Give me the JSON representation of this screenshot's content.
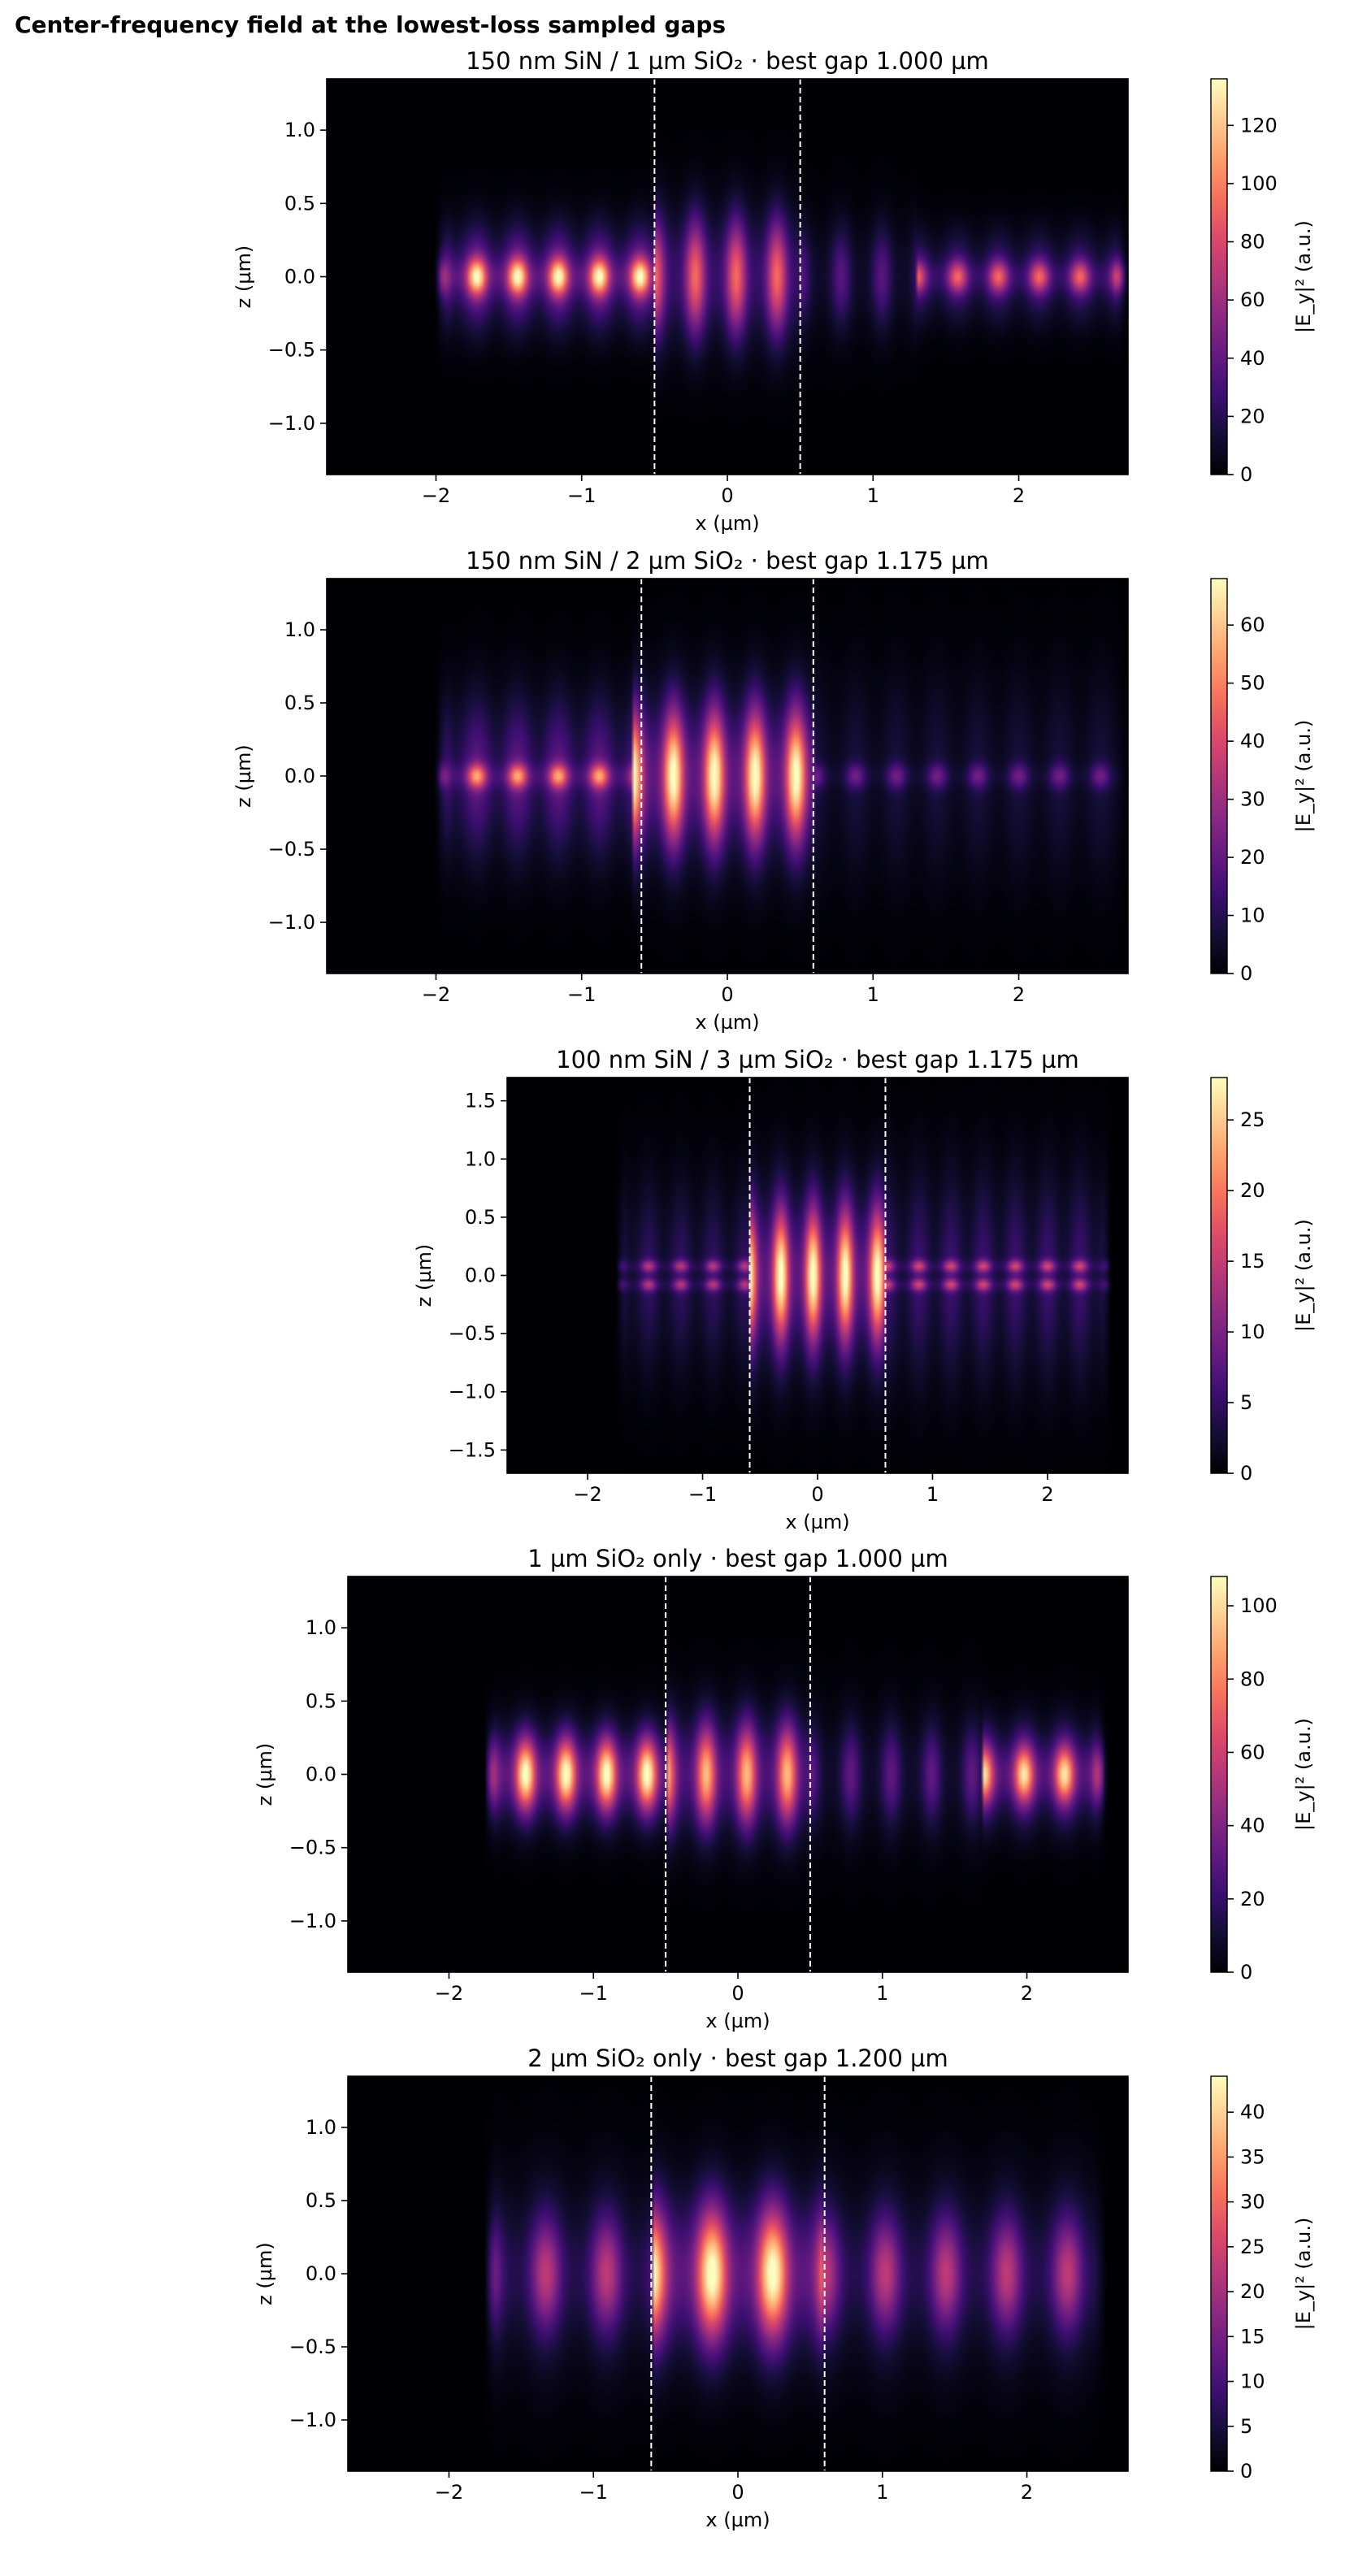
{
  "figure": {
    "suptitle": "Center-frequency field at the lowest-loss sampled gaps",
    "colormap": "magma"
  },
  "chart_data": [
    {
      "type": "heatmap",
      "title": "150 nm SiN / 1 µm SiO₂ · best gap 1.000 µm",
      "xlabel": "x (µm)",
      "ylabel": "z (µm)",
      "colorbar_label": "|E_y|² (a.u.)",
      "xlim": [
        -2.75,
        2.75
      ],
      "ylim": [
        -1.35,
        1.35
      ],
      "xticks": [
        -2,
        -1,
        0,
        1,
        2
      ],
      "yticks": [
        -1.0,
        -0.5,
        0.0,
        0.5,
        1.0
      ],
      "clim": [
        0,
        136
      ],
      "cticks": [
        0,
        20,
        40,
        60,
        80,
        100,
        120
      ],
      "gap_markers_x": [
        -0.5,
        0.5
      ],
      "field": {
        "x_start": -2.0,
        "x_end": 2.75,
        "z_margin": 0.0,
        "beat": 0.28,
        "sections": [
          {
            "from": -2.0,
            "to": -0.5,
            "peak": 136,
            "width": 0.12,
            "halo": 0.35,
            "split": 0
          },
          {
            "from": -0.5,
            "to": 0.5,
            "peak": 90,
            "width": 0.35,
            "halo": 0.5,
            "split": 0
          },
          {
            "from": 0.5,
            "to": 1.3,
            "peak": 35,
            "width": 0.3,
            "halo": 0.45,
            "split": 0
          },
          {
            "from": 1.3,
            "to": 2.75,
            "peak": 90,
            "width": 0.1,
            "halo": 0.3,
            "split": 0
          }
        ]
      }
    },
    {
      "type": "heatmap",
      "title": "150 nm SiN / 2 µm SiO₂ · best gap 1.175 µm",
      "xlabel": "x (µm)",
      "ylabel": "z (µm)",
      "colorbar_label": "|E_y|² (a.u.)",
      "xlim": [
        -2.75,
        2.75
      ],
      "ylim": [
        -1.35,
        1.35
      ],
      "xticks": [
        -2,
        -1,
        0,
        1,
        2
      ],
      "yticks": [
        -1.0,
        -0.5,
        0.0,
        0.5,
        1.0
      ],
      "clim": [
        0,
        68
      ],
      "cticks": [
        0,
        10,
        20,
        30,
        40,
        50,
        60
      ],
      "gap_markers_x": [
        -0.59,
        0.59
      ],
      "field": {
        "x_start": -2.0,
        "x_end": 2.75,
        "z_margin": 0.0,
        "beat": 0.28,
        "sections": [
          {
            "from": -2.0,
            "to": -0.65,
            "peak": 55,
            "width": 0.08,
            "halo": 0.55,
            "split": 0
          },
          {
            "from": -0.65,
            "to": 0.6,
            "peak": 68,
            "width": 0.4,
            "halo": 0.6,
            "split": 0
          },
          {
            "from": 0.6,
            "to": 2.75,
            "peak": 22,
            "width": 0.08,
            "halo": 0.7,
            "split": 0
          }
        ]
      }
    },
    {
      "type": "heatmap",
      "title": "100 nm SiN / 3 µm SiO₂ · best gap 1.175 µm",
      "xlabel": "x (µm)",
      "ylabel": "z (µm)",
      "colorbar_label": "|E_y|² (a.u.)",
      "xlim": [
        -2.7,
        2.7
      ],
      "ylim": [
        -1.7,
        1.7
      ],
      "xticks": [
        -2,
        -1,
        0,
        1,
        2
      ],
      "yticks": [
        -1.5,
        -1.0,
        -0.5,
        0.0,
        0.5,
        1.0,
        1.5
      ],
      "clim": [
        0,
        28
      ],
      "cticks": [
        0,
        5,
        10,
        15,
        20,
        25
      ],
      "gap_markers_x": [
        -0.59,
        0.59
      ],
      "field": {
        "x_start": -1.75,
        "x_end": 2.55,
        "z_margin": 0.0,
        "beat": 0.28,
        "sections": [
          {
            "from": -1.75,
            "to": -0.6,
            "peak": 14,
            "width": 0.08,
            "halo": 0.8,
            "split": 0.08
          },
          {
            "from": -0.6,
            "to": 0.6,
            "peak": 28,
            "width": 0.5,
            "halo": 0.8,
            "split": 0
          },
          {
            "from": 0.6,
            "to": 2.55,
            "peak": 16,
            "width": 0.06,
            "halo": 0.9,
            "split": 0.08
          }
        ]
      }
    },
    {
      "type": "heatmap",
      "title": "1 µm SiO₂ only · best gap 1.000 µm",
      "xlabel": "x (µm)",
      "ylabel": "z (µm)",
      "colorbar_label": "|E_y|² (a.u.)",
      "xlim": [
        -2.7,
        2.7
      ],
      "ylim": [
        -1.35,
        1.35
      ],
      "xticks": [
        -2,
        -1,
        0,
        1,
        2
      ],
      "yticks": [
        -1.0,
        -0.5,
        0.0,
        0.5,
        1.0
      ],
      "clim": [
        0,
        108
      ],
      "cticks": [
        0,
        20,
        40,
        60,
        80,
        100
      ],
      "gap_markers_x": [
        -0.5,
        0.5
      ],
      "field": {
        "x_start": -1.75,
        "x_end": 2.55,
        "z_margin": 0.0,
        "beat": 0.28,
        "sections": [
          {
            "from": -1.75,
            "to": -0.5,
            "peak": 108,
            "width": 0.22,
            "halo": 0.35,
            "split": 0
          },
          {
            "from": -0.5,
            "to": 0.5,
            "peak": 90,
            "width": 0.3,
            "halo": 0.45,
            "split": 0
          },
          {
            "from": 0.5,
            "to": 1.7,
            "peak": 30,
            "width": 0.3,
            "halo": 0.5,
            "split": 0
          },
          {
            "from": 1.7,
            "to": 2.55,
            "peak": 100,
            "width": 0.18,
            "halo": 0.35,
            "split": 0
          }
        ]
      }
    },
    {
      "type": "heatmap",
      "title": "2 µm SiO₂ only · best gap 1.200 µm",
      "xlabel": "x (µm)",
      "ylabel": "z (µm)",
      "colorbar_label": "|E_y|² (a.u.)",
      "xlim": [
        -2.7,
        2.7
      ],
      "ylim": [
        -1.35,
        1.35
      ],
      "xticks": [
        -2,
        -1,
        0,
        1,
        2
      ],
      "yticks": [
        -1.0,
        -0.5,
        0.0,
        0.5,
        1.0
      ],
      "clim": [
        0,
        44
      ],
      "cticks": [
        0,
        5,
        10,
        15,
        20,
        25,
        30,
        35,
        40
      ],
      "gap_markers_x": [
        -0.6,
        0.6
      ],
      "field": {
        "x_start": -1.75,
        "x_end": 2.55,
        "z_margin": 0.0,
        "beat": 0.42,
        "sections": [
          {
            "from": -1.75,
            "to": -0.6,
            "peak": 22,
            "width": 0.35,
            "halo": 0.65,
            "split": 0
          },
          {
            "from": -0.6,
            "to": 0.6,
            "peak": 44,
            "width": 0.4,
            "halo": 0.6,
            "split": 0
          },
          {
            "from": 0.6,
            "to": 2.55,
            "peak": 22,
            "width": 0.35,
            "halo": 0.65,
            "split": 0
          }
        ]
      }
    }
  ]
}
